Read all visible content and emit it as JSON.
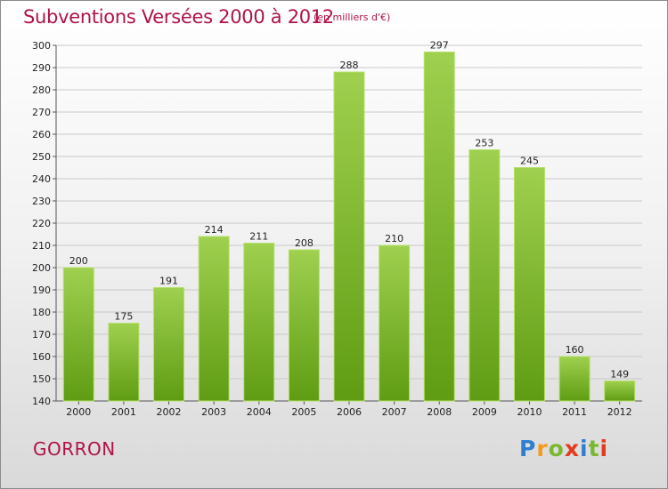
{
  "title": "Subventions Versées 2000 à 2012",
  "subtitle": "(en milliers d'€)",
  "commune": "GORRON",
  "brand": {
    "letters": [
      "P",
      "r",
      "o",
      "x",
      "i",
      "t",
      "i"
    ],
    "colors": [
      "#2f7fd0",
      "#f29a1f",
      "#7ab82e",
      "#e23a1c",
      "#2f7fd0",
      "#7ab82e",
      "#e23a1c"
    ]
  },
  "colors": {
    "bar_top": "#9fd04f",
    "bar_bottom": "#5f9c13",
    "bar_edge": "#b6e06b",
    "title": "#b0124a",
    "grid": "#c8c8c8"
  },
  "chart_data": {
    "type": "bar",
    "title": "Subventions Versées 2000 à 2012",
    "subtitle": "(en milliers d'€)",
    "categories": [
      "2000",
      "2001",
      "2002",
      "2003",
      "2004",
      "2005",
      "2006",
      "2007",
      "2008",
      "2009",
      "2010",
      "2011",
      "2012"
    ],
    "values": [
      200,
      175,
      191,
      214,
      211,
      208,
      288,
      210,
      297,
      253,
      245,
      160,
      149
    ],
    "data_labels": [
      "200",
      "175",
      "191",
      "214",
      "211",
      "208",
      "288",
      "210",
      "297",
      "253",
      "245",
      "160",
      "149"
    ],
    "ylim": [
      140,
      300
    ],
    "yticks": [
      140,
      150,
      160,
      170,
      180,
      190,
      200,
      210,
      220,
      230,
      240,
      250,
      260,
      270,
      280,
      290,
      300
    ],
    "grid": true,
    "legend": "none",
    "xlabel": "",
    "ylabel": ""
  }
}
